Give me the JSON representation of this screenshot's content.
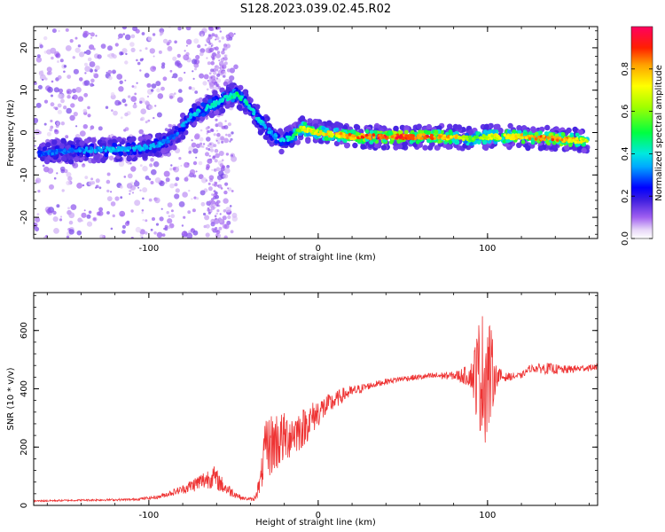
{
  "title": "S128.2023.039.02.45.R02",
  "colors": {
    "snr_line": "#ee3333",
    "axis": "#000000",
    "background": "#ffffff"
  },
  "colorbar": {
    "label": "Normalized spectral amplitude",
    "ticks": [
      "0.0",
      "0.2",
      "0.4",
      "0.6",
      "0.8"
    ],
    "tick_values": [
      0.0,
      0.2,
      0.4,
      0.6,
      0.8
    ],
    "range": [
      0,
      1
    ]
  },
  "chart_data": [
    {
      "type": "heatmap",
      "title": "S128.2023.039.02.45.R02",
      "xlabel": "Height of straight line (km)",
      "ylabel": "Frequency (Hz)",
      "xlim": [
        -168,
        165
      ],
      "ylim": [
        -25,
        25
      ],
      "xticks": [
        -100,
        0,
        100
      ],
      "xtick_labels": [
        "-100",
        "0",
        "100"
      ],
      "yticks": [
        -20,
        -10,
        0,
        10,
        20
      ],
      "ytick_labels": [
        "-20",
        "-10",
        "0",
        "10",
        "20"
      ],
      "ridge": {
        "x": [
          -165,
          -150,
          -130,
          -110,
          -95,
          -85,
          -75,
          -65,
          -55,
          -48,
          -42,
          -35,
          -28,
          -22,
          -15,
          -10,
          0,
          20,
          40,
          60,
          80,
          90,
          100,
          120,
          140,
          160
        ],
        "y": [
          -5,
          -4.5,
          -4,
          -4,
          -3,
          -1,
          4,
          6,
          8,
          9,
          7,
          3,
          0,
          -2,
          -1,
          1,
          0,
          -1,
          -1,
          -1,
          -1,
          -1.5,
          -1,
          -1,
          -1.5,
          -2
        ],
        "amplitude": [
          0.3,
          0.32,
          0.35,
          0.38,
          0.35,
          0.3,
          0.4,
          0.42,
          0.45,
          0.5,
          0.45,
          0.4,
          0.35,
          0.4,
          0.5,
          0.7,
          0.75,
          0.85,
          0.95,
          0.9,
          0.8,
          0.6,
          0.7,
          0.8,
          0.9,
          0.7
        ]
      },
      "colorbar_label": "Normalized spectral amplitude"
    },
    {
      "type": "line",
      "xlabel": "Height of straight line (km)",
      "ylabel": "SNR (10 * v/v)",
      "xlim": [
        -168,
        165
      ],
      "ylim": [
        0,
        730
      ],
      "xticks": [
        -100,
        0,
        100
      ],
      "xtick_labels": [
        "-100",
        "0",
        "100"
      ],
      "yticks": [
        0,
        200,
        400,
        600
      ],
      "ytick_labels": [
        "0",
        "200",
        "400",
        "600"
      ],
      "series": [
        {
          "name": "SNR",
          "x": [
            -168,
            -140,
            -110,
            -95,
            -80,
            -70,
            -62,
            -55,
            -45,
            -38,
            -34,
            -32,
            -30,
            -25,
            -20,
            -15,
            -10,
            -5,
            0,
            5,
            10,
            15,
            20,
            30,
            40,
            50,
            60,
            70,
            80,
            90,
            95,
            100,
            105,
            110,
            120,
            125,
            135,
            145,
            155,
            165
          ],
          "y": [
            15,
            18,
            20,
            28,
            55,
            80,
            100,
            60,
            25,
            20,
            80,
            170,
            200,
            220,
            230,
            250,
            260,
            290,
            320,
            340,
            360,
            380,
            390,
            410,
            425,
            435,
            440,
            445,
            445,
            445,
            450,
            450,
            445,
            440,
            445,
            470,
            470,
            465,
            470,
            475
          ],
          "noise": [
            3,
            3,
            4,
            6,
            15,
            30,
            40,
            25,
            6,
            6,
            40,
            90,
            110,
            110,
            90,
            80,
            70,
            60,
            50,
            40,
            30,
            25,
            20,
            12,
            10,
            10,
            10,
            12,
            14,
            40,
            200,
            250,
            40,
            15,
            10,
            12,
            20,
            15,
            12,
            10
          ]
        }
      ]
    }
  ]
}
